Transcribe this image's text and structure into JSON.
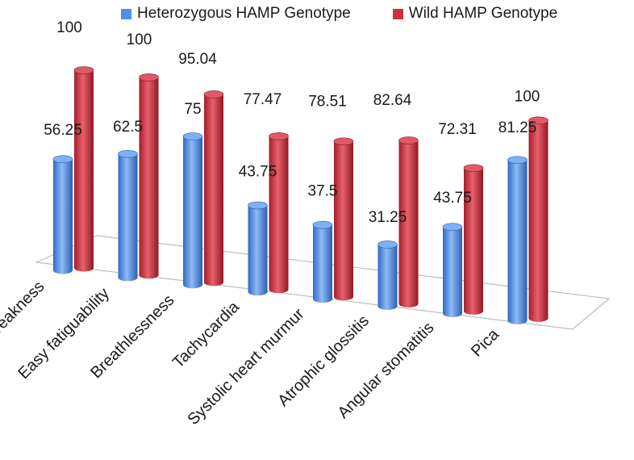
{
  "chart_data": {
    "type": "bar",
    "title": "",
    "xlabel": "",
    "ylabel": "",
    "ylim": [
      0,
      100
    ],
    "categories": [
      "Weakness",
      "Easy fatiguability",
      "Breathlessness",
      "Tachycardia",
      "Systolic heart murmur",
      "Atrophic glossitis",
      "Angular stomatitis",
      "Pica"
    ],
    "series": [
      {
        "name": "Heterozygous HAMP Genotype",
        "color": "#4f8fe6",
        "values": [
          56.25,
          62.5,
          75,
          43.75,
          37.5,
          31.25,
          43.75,
          81.25
        ],
        "labels": [
          "56.25",
          "62.5",
          "75",
          "43.75",
          "37.5",
          "31.25",
          "43.75",
          "81.25"
        ]
      },
      {
        "name": "Wild HAMP Genotype",
        "color": "#c8323f",
        "values": [
          100,
          100,
          95.04,
          77.47,
          78.51,
          82.64,
          72.31,
          100
        ],
        "labels": [
          "100",
          "100",
          "95.04",
          "77.47",
          "78.51",
          "82.64",
          "72.31",
          "100"
        ]
      }
    ],
    "legend": "top"
  }
}
